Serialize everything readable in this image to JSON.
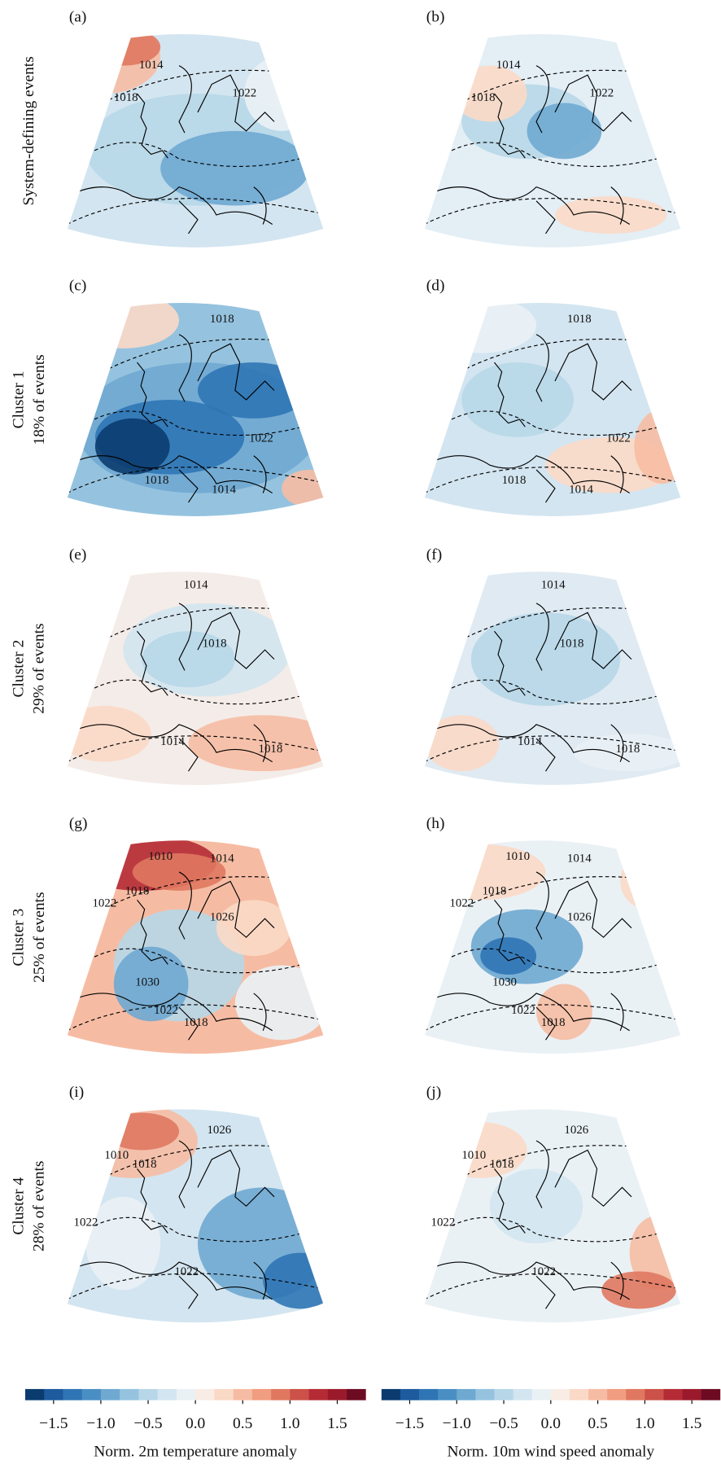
{
  "panels": [
    {
      "label": "(a)",
      "contour_labels": [
        "1014",
        "1018",
        "1022"
      ]
    },
    {
      "label": "(b)",
      "contour_labels": [
        "1014",
        "1018",
        "1022"
      ]
    },
    {
      "label": "(c)",
      "contour_labels": [
        "1018",
        "1022",
        "1018",
        "1014"
      ]
    },
    {
      "label": "(d)",
      "contour_labels": [
        "1018",
        "1022",
        "1018",
        "1014"
      ]
    },
    {
      "label": "(e)",
      "contour_labels": [
        "1014",
        "1018",
        "1014",
        "1018"
      ]
    },
    {
      "label": "(f)",
      "contour_labels": [
        "1014",
        "1018",
        "1014",
        "1018"
      ]
    },
    {
      "label": "(g)",
      "contour_labels": [
        "1010",
        "1014",
        "1018",
        "1022",
        "1026",
        "1030",
        "1022",
        "1018"
      ]
    },
    {
      "label": "(h)",
      "contour_labels": [
        "1010",
        "1014",
        "1018",
        "1022",
        "1026",
        "1030",
        "1022",
        "1018"
      ]
    },
    {
      "label": "(i)",
      "contour_labels": [
        "1010",
        "1018",
        "1026",
        "1022",
        "1022"
      ]
    },
    {
      "label": "(j)",
      "contour_labels": [
        "1010",
        "1018",
        "1026",
        "1022",
        "1022"
      ]
    }
  ],
  "row_labels": [
    [
      "System-defining events"
    ],
    [
      "Cluster 1",
      "18% of events"
    ],
    [
      "Cluster 2",
      "29% of events"
    ],
    [
      "Cluster 3",
      "25% of events"
    ],
    [
      "Cluster 4",
      "28% of events"
    ]
  ],
  "colorbars": [
    {
      "title": "Norm. 2m temperature anomaly",
      "xlim": [
        -1.8,
        1.8
      ],
      "xticks": [
        {
          "value": -1.5,
          "label": "−1.5"
        },
        {
          "value": -1,
          "label": "−1.0"
        },
        {
          "value": -0.5,
          "label": "−0.5"
        },
        {
          "value": 0,
          "label": "0.0"
        },
        0.5,
        {
          "value": 1,
          "label": "1.0"
        },
        1.5
      ],
      "colors": [
        "#0b3c6f",
        "#1d5a9e",
        "#2f75b5",
        "#4a8fc4",
        "#6fa9d1",
        "#95c3df",
        "#b7d7e8",
        "#d3e5f0",
        "#eaf1f5",
        "#f8ece5",
        "#fbd9c7",
        "#f6bca3",
        "#f19d80",
        "#e07860",
        "#cb5149",
        "#b52b35",
        "#9a1a2c",
        "#6d0b22"
      ]
    },
    {
      "title": "Norm. 10m wind speed anomaly",
      "xlim": [
        -1.8,
        1.8
      ],
      "xticks": [
        {
          "value": -1.5,
          "label": "−1.5"
        },
        {
          "value": -1,
          "label": "−1.0"
        },
        {
          "value": -0.5,
          "label": "−0.5"
        },
        {
          "value": 0,
          "label": "0.0"
        },
        0.5,
        {
          "value": 1,
          "label": "1.0"
        },
        1.5
      ],
      "colors": [
        "#0b3c6f",
        "#1d5a9e",
        "#2f75b5",
        "#4a8fc4",
        "#6fa9d1",
        "#95c3df",
        "#b7d7e8",
        "#d3e5f0",
        "#eaf1f5",
        "#f8ece5",
        "#fbd9c7",
        "#f6bca3",
        "#f19d80",
        "#e07860",
        "#cb5149",
        "#b52b35",
        "#9a1a2c",
        "#6d0b22"
      ]
    }
  ]
}
